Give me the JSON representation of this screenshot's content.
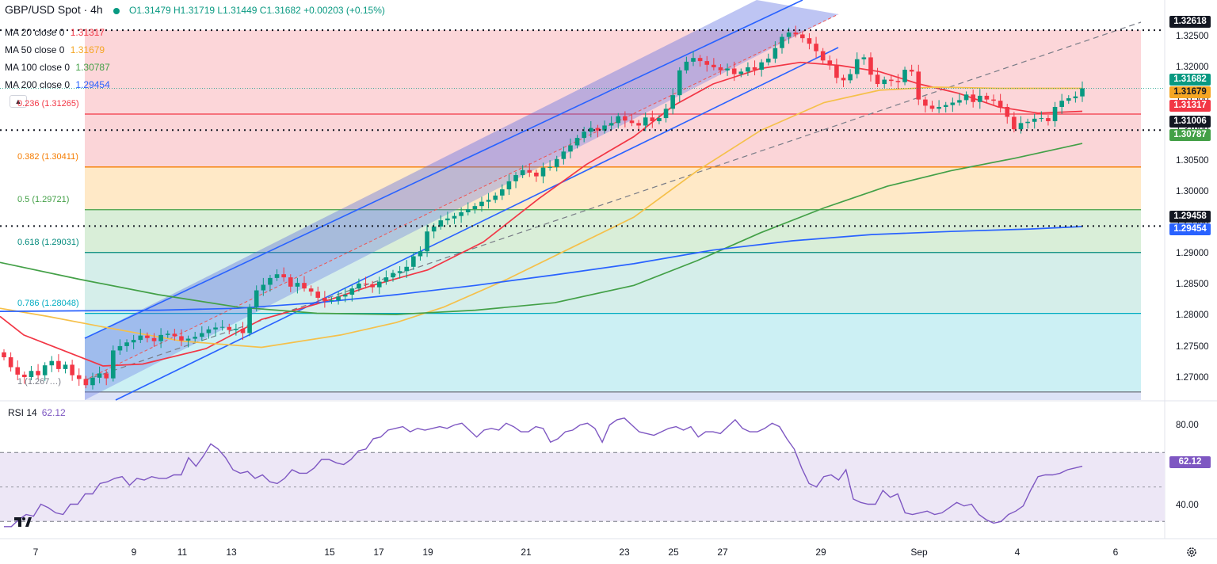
{
  "header": {
    "symbol": "GBP/USD Spot · 4h",
    "ohlc": "O1.31479  H1.31719  L1.31449  C1.31682  +0.00203 (+0.15%)"
  },
  "indicators": [
    {
      "label": "MA 20 close 0",
      "value": "1.31317",
      "color": "#f23645"
    },
    {
      "label": "MA 50 close 0",
      "value": "1.31679",
      "color": "#f5a623"
    },
    {
      "label": "MA 100 close 0",
      "value": "1.30787",
      "color": "#43a047"
    },
    {
      "label": "MA 200 close 0",
      "value": "1.29454",
      "color": "#2962ff"
    }
  ],
  "fib_levels": [
    {
      "ratio": "0.236",
      "label": "(1.31265)",
      "price": 1.31265,
      "color": "#f23645"
    },
    {
      "ratio": "0.382",
      "label": "(1.30411)",
      "price": 1.30411,
      "color": "#f57c00"
    },
    {
      "ratio": "0.5",
      "label": "(1.29721)",
      "price": 1.29721,
      "color": "#43a047"
    },
    {
      "ratio": "0.618",
      "label": "(1.29031)",
      "price": 1.29031,
      "color": "#00897b"
    },
    {
      "ratio": "0.786",
      "label": "(1.28048)",
      "price": 1.28048,
      "color": "#00acc1"
    },
    {
      "ratio": "1",
      "label": "(1.267…)",
      "price": 1.2678,
      "color": "#787b86"
    }
  ],
  "price_tags": [
    {
      "text": "1.32618",
      "price": 1.32618,
      "bg": "#131722",
      "dark": false
    },
    {
      "text": "1.31682",
      "price": 1.31682,
      "bg": "#089981",
      "dark": false
    },
    {
      "text": "1.31679",
      "price": 1.31679,
      "bg": "#f5a623",
      "dark": true
    },
    {
      "text": "1.31317",
      "price": 1.31317,
      "bg": "#f23645",
      "dark": false
    },
    {
      "text": "1.31006",
      "price": 1.31006,
      "bg": "#131722",
      "dark": false
    },
    {
      "text": "1.30787",
      "price": 1.30787,
      "bg": "#43a047",
      "dark": false
    },
    {
      "text": "1.29458",
      "price": 1.29458,
      "bg": "#131722",
      "dark": false
    },
    {
      "text": "1.29454",
      "price": 1.29454,
      "bg": "#2962ff",
      "dark": false
    }
  ],
  "y_ticks": [
    "1.32500",
    "1.32000",
    "1.31500",
    "1.31000",
    "1.30500",
    "1.30000",
    "1.29500",
    "1.29000",
    "1.28500",
    "1.28000",
    "1.27500",
    "1.27000"
  ],
  "x_ticks": [
    "7",
    "9",
    "11",
    "13",
    "15",
    "17",
    "19",
    "21",
    "23",
    "25",
    "27",
    "29",
    "Sep",
    "4",
    "6"
  ],
  "rsi": {
    "label": "RSI 14",
    "value": "62.12",
    "ticks": [
      "80.00",
      "40.00"
    ],
    "upper": 70,
    "lower": 30,
    "mid": 50,
    "values": [
      27,
      27,
      31,
      34,
      33,
      40,
      38,
      35,
      34,
      40,
      40,
      46,
      46,
      52,
      53,
      55,
      56,
      51,
      55,
      54,
      56,
      55,
      55,
      57,
      57,
      67,
      62,
      68,
      75,
      72,
      67,
      60,
      58,
      59,
      55,
      57,
      53,
      52,
      55,
      60,
      58,
      58,
      61,
      66,
      66,
      64,
      63,
      66,
      71,
      72,
      78,
      79,
      83,
      84,
      85,
      82,
      84,
      83,
      84,
      85,
      84,
      86,
      87,
      83,
      79,
      83,
      84,
      83,
      87,
      85,
      82,
      82,
      85,
      84,
      76,
      78,
      82,
      83,
      86,
      87,
      84,
      76,
      86,
      89,
      90,
      86,
      82,
      81,
      80,
      82,
      84,
      85,
      83,
      85,
      79,
      82,
      82,
      81,
      85,
      89,
      84,
      82,
      82,
      84,
      87,
      85,
      78,
      72,
      61,
      52,
      50,
      56,
      57,
      54,
      60,
      43,
      41,
      40,
      40,
      48,
      44,
      46,
      35,
      34,
      35,
      36,
      34,
      35,
      38,
      41,
      39,
      40,
      34,
      31,
      29,
      30,
      34,
      36,
      39,
      48,
      56,
      57,
      57,
      58,
      60,
      61,
      62
    ]
  },
  "chart_data": {
    "type": "candlestick",
    "title": "GBP/USD Spot · 4h",
    "ylim": [
      1.2665,
      1.3285
    ],
    "x_axis_labels": [
      "7",
      "9",
      "11",
      "13",
      "15",
      "17",
      "19",
      "21",
      "23",
      "25",
      "27",
      "29",
      "Sep",
      "4",
      "6"
    ],
    "last_close": 1.31682,
    "horizontal_levels": [
      1.32618,
      1.31006,
      1.29458
    ],
    "series": [
      {
        "name": "GBP/USD",
        "closes": [
          1.2734,
          1.2718,
          1.2706,
          1.2702,
          1.2712,
          1.2705,
          1.2721,
          1.2728,
          1.2715,
          1.2722,
          1.2705,
          1.2699,
          1.2689,
          1.2701,
          1.2708,
          1.27,
          1.2745,
          1.2752,
          1.2758,
          1.2762,
          1.2769,
          1.2765,
          1.276,
          1.277,
          1.2772,
          1.2768,
          1.2761,
          1.2764,
          1.2767,
          1.2773,
          1.2779,
          1.2782,
          1.2783,
          1.2778,
          1.278,
          1.2773,
          1.2815,
          1.2842,
          1.2851,
          1.2862,
          1.2868,
          1.2863,
          1.2848,
          1.2854,
          1.2845,
          1.284,
          1.283,
          1.2825,
          1.2826,
          1.2832,
          1.2835,
          1.2845,
          1.2853,
          1.2852,
          1.2847,
          1.2856,
          1.2863,
          1.287,
          1.2873,
          1.288,
          1.2897,
          1.2905,
          1.2937,
          1.2945,
          1.2955,
          1.2958,
          1.2962,
          1.2968,
          1.2973,
          1.2978,
          1.2985,
          1.2988,
          1.2995,
          1.3005,
          1.3018,
          1.3028,
          1.3036,
          1.3032,
          1.3026,
          1.304,
          1.3041,
          1.3054,
          1.3066,
          1.3076,
          1.3088,
          1.3098,
          1.3104,
          1.31,
          1.3108,
          1.3112,
          1.3123,
          1.3116,
          1.3112,
          1.3108,
          1.3121,
          1.3115,
          1.312,
          1.3135,
          1.3157,
          1.3197,
          1.3211,
          1.3217,
          1.3212,
          1.3206,
          1.3202,
          1.3197,
          1.32,
          1.3191,
          1.3195,
          1.3202,
          1.3198,
          1.321,
          1.3216,
          1.3233,
          1.3251,
          1.3258,
          1.3255,
          1.3249,
          1.324,
          1.3228,
          1.3213,
          1.3205,
          1.3185,
          1.3181,
          1.3191,
          1.3215,
          1.3218,
          1.319,
          1.3175,
          1.3182,
          1.318,
          1.3178,
          1.3198,
          1.3195,
          1.315,
          1.314,
          1.3135,
          1.3138,
          1.3141,
          1.3145,
          1.3149,
          1.3158,
          1.3146,
          1.3156,
          1.315,
          1.3148,
          1.3138,
          1.3122,
          1.3102,
          1.3112,
          1.3114,
          1.3119,
          1.312,
          1.3115,
          1.3138,
          1.3148,
          1.3152,
          1.3155,
          1.3168
        ]
      },
      {
        "name": "MA 20",
        "points": [
          [
            0,
            1.28
          ],
          [
            30,
            1.277
          ],
          [
            80,
            1.2745
          ],
          [
            130,
            1.272
          ],
          [
            180,
            1.2723
          ],
          [
            260,
            1.2748
          ],
          [
            330,
            1.2795
          ],
          [
            400,
            1.282
          ],
          [
            470,
            1.285
          ],
          [
            540,
            1.2875
          ],
          [
            610,
            1.292
          ],
          [
            680,
            1.299
          ],
          [
            740,
            1.3045
          ],
          [
            800,
            1.309
          ],
          [
            850,
            1.314
          ],
          [
            900,
            1.3175
          ],
          [
            960,
            1.32
          ],
          [
            1010,
            1.321
          ],
          [
            1060,
            1.3205
          ],
          [
            1110,
            1.3195
          ],
          [
            1160,
            1.3175
          ],
          [
            1210,
            1.316
          ],
          [
            1260,
            1.3138
          ],
          [
            1310,
            1.3128
          ],
          [
            1366,
            1.3131
          ]
        ]
      },
      {
        "name": "MA 50",
        "points": [
          [
            0,
            1.2813
          ],
          [
            60,
            1.28
          ],
          [
            130,
            1.2783
          ],
          [
            230,
            1.276
          ],
          [
            330,
            1.275
          ],
          [
            430,
            1.277
          ],
          [
            500,
            1.279
          ],
          [
            560,
            1.2815
          ],
          [
            640,
            1.286
          ],
          [
            720,
            1.291
          ],
          [
            800,
            1.296
          ],
          [
            880,
            1.3035
          ],
          [
            960,
            1.31
          ],
          [
            1040,
            1.3145
          ],
          [
            1110,
            1.3165
          ],
          [
            1180,
            1.317
          ],
          [
            1260,
            1.3168
          ],
          [
            1320,
            1.3168
          ],
          [
            1366,
            1.3168
          ]
        ]
      },
      {
        "name": "MA 100",
        "points": [
          [
            0,
            1.2887
          ],
          [
            100,
            1.286
          ],
          [
            200,
            1.2835
          ],
          [
            300,
            1.2815
          ],
          [
            400,
            1.2805
          ],
          [
            500,
            1.2803
          ],
          [
            600,
            1.281
          ],
          [
            700,
            1.2822
          ],
          [
            800,
            1.285
          ],
          [
            880,
            1.289
          ],
          [
            960,
            1.2935
          ],
          [
            1040,
            1.2975
          ],
          [
            1120,
            1.301
          ],
          [
            1200,
            1.3035
          ],
          [
            1280,
            1.3055
          ],
          [
            1366,
            1.3079
          ]
        ]
      },
      {
        "name": "MA 200",
        "points": [
          [
            0,
            1.2808
          ],
          [
            100,
            1.2809
          ],
          [
            200,
            1.281
          ],
          [
            300,
            1.2813
          ],
          [
            400,
            1.2822
          ],
          [
            500,
            1.2835
          ],
          [
            600,
            1.285
          ],
          [
            700,
            1.2867
          ],
          [
            800,
            1.2885
          ],
          [
            900,
            1.2907
          ],
          [
            1000,
            1.2922
          ],
          [
            1100,
            1.2932
          ],
          [
            1200,
            1.2937
          ],
          [
            1300,
            1.2941
          ],
          [
            1366,
            1.2945
          ]
        ]
      }
    ]
  }
}
